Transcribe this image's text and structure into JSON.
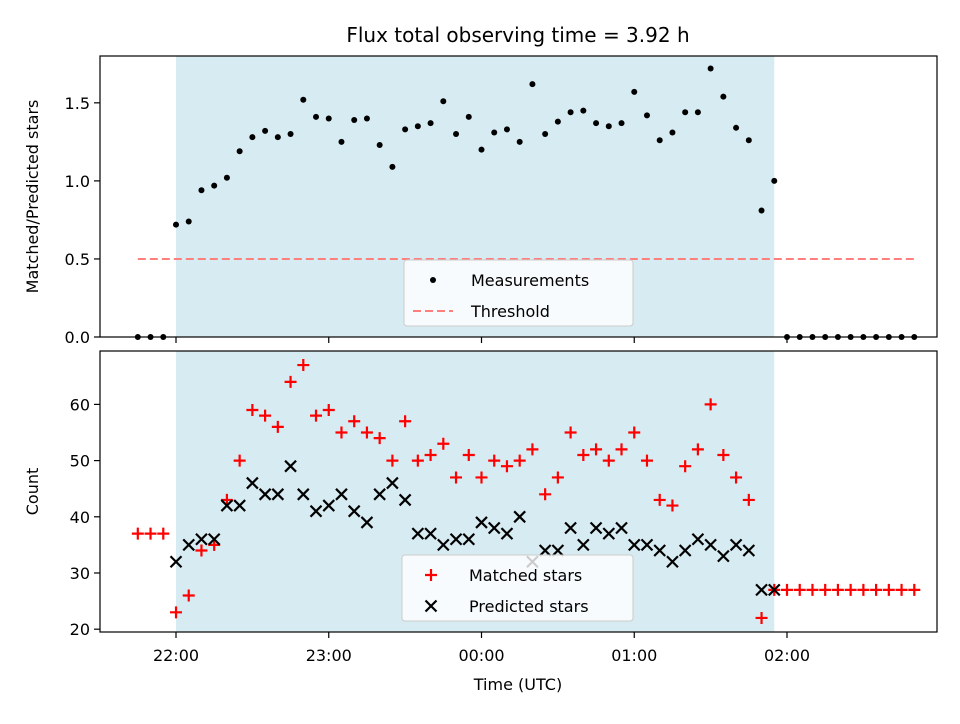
{
  "chart_data": {
    "title": "Flux total observing time = 3.92 h",
    "xlabel": "Time (UTC)",
    "x_ticks": [
      "22:00",
      "23:00",
      "00:00",
      "01:00",
      "02:00"
    ],
    "shaded_interval": [
      "22:00",
      "01:55"
    ],
    "panels": [
      {
        "type": "scatter",
        "ylabel": "Matched/Predicted stars",
        "ylim": [
          0,
          1.8
        ],
        "y_ticks": [
          "0.0",
          "0.5",
          "1.0",
          "1.5"
        ],
        "legend": "lower-center",
        "series": [
          {
            "name": "Measurements",
            "marker": "dot",
            "color": "#000000",
            "points": [
              [
                "21:45",
                0
              ],
              [
                "21:50",
                0
              ],
              [
                "21:55",
                0
              ],
              [
                "22:00",
                0.72
              ],
              [
                "22:05",
                0.74
              ],
              [
                "22:10",
                0.94
              ],
              [
                "22:15",
                0.97
              ],
              [
                "22:20",
                1.02
              ],
              [
                "22:25",
                1.19
              ],
              [
                "22:30",
                1.28
              ],
              [
                "22:35",
                1.32
              ],
              [
                "22:40",
                1.28
              ],
              [
                "22:45",
                1.3
              ],
              [
                "22:50",
                1.52
              ],
              [
                "22:55",
                1.41
              ],
              [
                "23:00",
                1.4
              ],
              [
                "23:05",
                1.25
              ],
              [
                "23:10",
                1.39
              ],
              [
                "23:15",
                1.4
              ],
              [
                "23:20",
                1.23
              ],
              [
                "23:25",
                1.09
              ],
              [
                "23:30",
                1.33
              ],
              [
                "23:35",
                1.35
              ],
              [
                "23:40",
                1.37
              ],
              [
                "23:45",
                1.51
              ],
              [
                "23:50",
                1.3
              ],
              [
                "23:55",
                1.41
              ],
              [
                "00:00",
                1.2
              ],
              [
                "00:05",
                1.31
              ],
              [
                "00:10",
                1.33
              ],
              [
                "00:15",
                1.25
              ],
              [
                "00:20",
                1.62
              ],
              [
                "00:25",
                1.3
              ],
              [
                "00:30",
                1.38
              ],
              [
                "00:35",
                1.44
              ],
              [
                "00:40",
                1.45
              ],
              [
                "00:45",
                1.37
              ],
              [
                "00:50",
                1.35
              ],
              [
                "00:55",
                1.37
              ],
              [
                "01:00",
                1.57
              ],
              [
                "01:05",
                1.42
              ],
              [
                "01:10",
                1.26
              ],
              [
                "01:15",
                1.31
              ],
              [
                "01:20",
                1.44
              ],
              [
                "01:25",
                1.44
              ],
              [
                "01:30",
                1.72
              ],
              [
                "01:35",
                1.54
              ],
              [
                "01:40",
                1.34
              ],
              [
                "01:45",
                1.26
              ],
              [
                "01:50",
                0.81
              ],
              [
                "01:55",
                1.0
              ],
              [
                "02:00",
                0
              ],
              [
                "02:05",
                0
              ],
              [
                "02:10",
                0
              ],
              [
                "02:15",
                0
              ],
              [
                "02:20",
                0
              ],
              [
                "02:25",
                0
              ],
              [
                "02:30",
                0
              ],
              [
                "02:35",
                0
              ],
              [
                "02:40",
                0
              ],
              [
                "02:45",
                0
              ],
              [
                "02:50",
                0
              ]
            ]
          },
          {
            "name": "Threshold",
            "marker": "dashed-line",
            "color": "#ff7f7f",
            "points": [
              [
                "21:45",
                0.5
              ],
              [
                "02:50",
                0.5
              ]
            ]
          }
        ]
      },
      {
        "type": "scatter",
        "ylabel": "Count",
        "ylim": [
          19.5,
          69.5
        ],
        "y_ticks": [
          "20",
          "30",
          "40",
          "50",
          "60"
        ],
        "legend": "lower-center",
        "series": [
          {
            "name": "Matched stars",
            "marker": "plus",
            "color": "#ff0000",
            "points": [
              [
                "21:45",
                37
              ],
              [
                "21:50",
                37
              ],
              [
                "21:55",
                37
              ],
              [
                "22:00",
                23
              ],
              [
                "22:05",
                26
              ],
              [
                "22:10",
                34
              ],
              [
                "22:15",
                35
              ],
              [
                "22:20",
                43
              ],
              [
                "22:25",
                50
              ],
              [
                "22:30",
                59
              ],
              [
                "22:35",
                58
              ],
              [
                "22:40",
                56
              ],
              [
                "22:45",
                64
              ],
              [
                "22:50",
                67
              ],
              [
                "22:55",
                58
              ],
              [
                "23:00",
                59
              ],
              [
                "23:05",
                55
              ],
              [
                "23:10",
                57
              ],
              [
                "23:15",
                55
              ],
              [
                "23:20",
                54
              ],
              [
                "23:25",
                50
              ],
              [
                "23:30",
                57
              ],
              [
                "23:35",
                50
              ],
              [
                "23:40",
                51
              ],
              [
                "23:45",
                53
              ],
              [
                "23:50",
                47
              ],
              [
                "23:55",
                51
              ],
              [
                "00:00",
                47
              ],
              [
                "00:05",
                50
              ],
              [
                "00:10",
                49
              ],
              [
                "00:15",
                50
              ],
              [
                "00:20",
                52
              ],
              [
                "00:25",
                44
              ],
              [
                "00:30",
                47
              ],
              [
                "00:35",
                55
              ],
              [
                "00:40",
                51
              ],
              [
                "00:45",
                52
              ],
              [
                "00:50",
                50
              ],
              [
                "00:55",
                52
              ],
              [
                "01:00",
                55
              ],
              [
                "01:05",
                50
              ],
              [
                "01:10",
                43
              ],
              [
                "01:15",
                42
              ],
              [
                "01:20",
                49
              ],
              [
                "01:25",
                52
              ],
              [
                "01:30",
                60
              ],
              [
                "01:35",
                51
              ],
              [
                "01:40",
                47
              ],
              [
                "01:45",
                43
              ],
              [
                "01:50",
                22
              ],
              [
                "01:55",
                27
              ],
              [
                "02:00",
                27
              ],
              [
                "02:05",
                27
              ],
              [
                "02:10",
                27
              ],
              [
                "02:15",
                27
              ],
              [
                "02:20",
                27
              ],
              [
                "02:25",
                27
              ],
              [
                "02:30",
                27
              ],
              [
                "02:35",
                27
              ],
              [
                "02:40",
                27
              ],
              [
                "02:45",
                27
              ],
              [
                "02:50",
                27
              ]
            ]
          },
          {
            "name": "Predicted stars",
            "marker": "x",
            "color": "#000000",
            "points": [
              [
                "22:00",
                32
              ],
              [
                "22:05",
                35
              ],
              [
                "22:10",
                36
              ],
              [
                "22:15",
                36
              ],
              [
                "22:20",
                42
              ],
              [
                "22:25",
                42
              ],
              [
                "22:30",
                46
              ],
              [
                "22:35",
                44
              ],
              [
                "22:40",
                44
              ],
              [
                "22:45",
                49
              ],
              [
                "22:50",
                44
              ],
              [
                "22:55",
                41
              ],
              [
                "23:00",
                42
              ],
              [
                "23:05",
                44
              ],
              [
                "23:10",
                41
              ],
              [
                "23:15",
                39
              ],
              [
                "23:20",
                44
              ],
              [
                "23:25",
                46
              ],
              [
                "23:30",
                43
              ],
              [
                "23:35",
                37
              ],
              [
                "23:40",
                37
              ],
              [
                "23:45",
                35
              ],
              [
                "23:50",
                36
              ],
              [
                "23:55",
                36
              ],
              [
                "00:00",
                39
              ],
              [
                "00:05",
                38
              ],
              [
                "00:10",
                37
              ],
              [
                "00:15",
                40
              ],
              [
                "00:20",
                32
              ],
              [
                "00:25",
                34
              ],
              [
                "00:30",
                34
              ],
              [
                "00:35",
                38
              ],
              [
                "00:40",
                35
              ],
              [
                "00:45",
                38
              ],
              [
                "00:50",
                37
              ],
              [
                "00:55",
                38
              ],
              [
                "01:00",
                35
              ],
              [
                "01:05",
                35
              ],
              [
                "01:10",
                34
              ],
              [
                "01:15",
                32
              ],
              [
                "01:20",
                34
              ],
              [
                "01:25",
                36
              ],
              [
                "01:30",
                35
              ],
              [
                "01:35",
                33
              ],
              [
                "01:40",
                35
              ],
              [
                "01:45",
                34
              ],
              [
                "01:50",
                27
              ],
              [
                "01:55",
                27
              ]
            ]
          }
        ]
      }
    ]
  }
}
